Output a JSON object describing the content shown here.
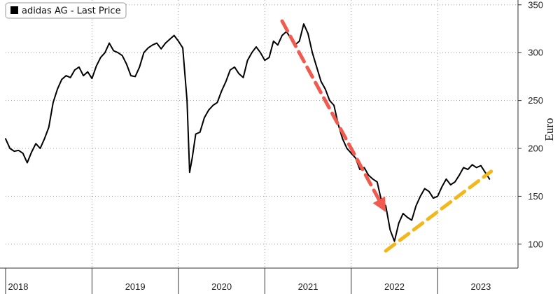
{
  "chart_data": {
    "type": "line",
    "title": "",
    "xlabel": "",
    "ylabel": "Euro",
    "ylim": [
      75,
      355
    ],
    "y_ticks": [
      100,
      150,
      200,
      250,
      300,
      350
    ],
    "x_tick_labels": [
      "2018",
      "2019",
      "2020",
      "2021",
      "2022",
      "2023"
    ],
    "grid": "dotted horizontal and vertical",
    "legend_position": "top-left",
    "series": [
      {
        "name": "adidas AG - Last Price",
        "color": "#000000",
        "x": [
          2018.0,
          2018.05,
          2018.1,
          2018.15,
          2018.2,
          2018.25,
          2018.3,
          2018.35,
          2018.4,
          2018.45,
          2018.5,
          2018.55,
          2018.6,
          2018.65,
          2018.7,
          2018.75,
          2018.8,
          2018.85,
          2018.9,
          2018.95,
          2019.0,
          2019.05,
          2019.1,
          2019.15,
          2019.2,
          2019.25,
          2019.3,
          2019.35,
          2019.4,
          2019.45,
          2019.5,
          2019.55,
          2019.6,
          2019.65,
          2019.7,
          2019.75,
          2019.8,
          2019.85,
          2019.9,
          2019.95,
          2020.0,
          2020.05,
          2020.1,
          2020.13,
          2020.16,
          2020.2,
          2020.25,
          2020.3,
          2020.35,
          2020.4,
          2020.45,
          2020.5,
          2020.55,
          2020.6,
          2020.65,
          2020.7,
          2020.75,
          2020.8,
          2020.85,
          2020.9,
          2020.95,
          2021.0,
          2021.05,
          2021.1,
          2021.15,
          2021.2,
          2021.25,
          2021.3,
          2021.35,
          2021.4,
          2021.45,
          2021.5,
          2021.55,
          2021.6,
          2021.65,
          2021.7,
          2021.75,
          2021.8,
          2021.85,
          2021.9,
          2021.95,
          2022.0,
          2022.05,
          2022.1,
          2022.15,
          2022.2,
          2022.25,
          2022.3,
          2022.35,
          2022.4,
          2022.45,
          2022.5,
          2022.55,
          2022.6,
          2022.65,
          2022.7,
          2022.75,
          2022.8,
          2022.85,
          2022.9,
          2022.95,
          2023.0,
          2023.05,
          2023.1,
          2023.15,
          2023.2,
          2023.25,
          2023.3,
          2023.35,
          2023.4,
          2023.45,
          2023.5,
          2023.55,
          2023.6
        ],
        "values": [
          210,
          200,
          197,
          198,
          195,
          185,
          196,
          205,
          200,
          210,
          222,
          248,
          262,
          272,
          276,
          274,
          282,
          285,
          276,
          280,
          273,
          286,
          295,
          300,
          310,
          302,
          300,
          297,
          288,
          276,
          275,
          285,
          300,
          305,
          308,
          310,
          304,
          310,
          314,
          318,
          312,
          305,
          250,
          175,
          190,
          215,
          217,
          232,
          240,
          245,
          248,
          260,
          270,
          282,
          285,
          278,
          274,
          292,
          300,
          306,
          300,
          292,
          295,
          312,
          308,
          318,
          322,
          315,
          308,
          312,
          330,
          320,
          300,
          285,
          270,
          262,
          250,
          245,
          225,
          210,
          200,
          195,
          190,
          178,
          180,
          172,
          168,
          165,
          145,
          140,
          115,
          103,
          122,
          132,
          128,
          125,
          140,
          150,
          158,
          155,
          148,
          150,
          160,
          168,
          162,
          165,
          172,
          180,
          178,
          183,
          180,
          182,
          175,
          168
        ]
      }
    ],
    "annotations": [
      {
        "type": "arrow",
        "style": "dashed",
        "color": "#f05a4f",
        "direction": "down",
        "from": [
          2021.2,
          333
        ],
        "to": [
          2022.36,
          140
        ]
      },
      {
        "type": "trendline",
        "style": "dashed",
        "color": "#f2b81b",
        "direction": "up",
        "from": [
          2022.4,
          93
        ],
        "to": [
          2023.62,
          176
        ]
      }
    ]
  }
}
